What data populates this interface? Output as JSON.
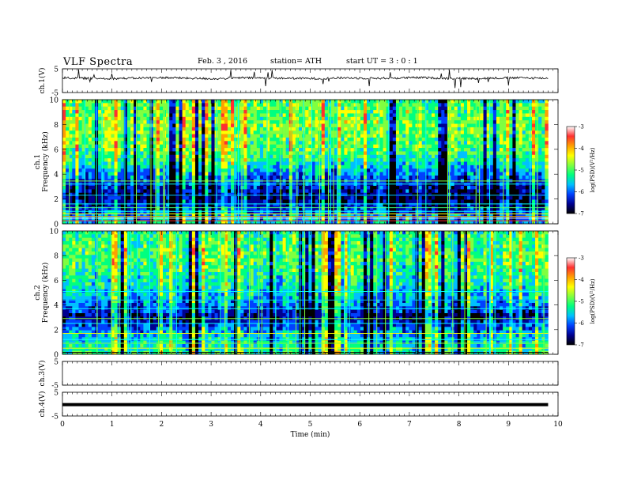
{
  "header": {
    "title": "VLF  Spectra",
    "date": "Feb. 3  , 2016",
    "station": "station= ATH",
    "start": "start  UT  =    3  : 0   : 1"
  },
  "colorbar": {
    "label": "log(PSD)(V²/Hz)",
    "ticks": [
      "-3",
      "-4",
      "-5",
      "-6",
      "-7"
    ],
    "colors": [
      "#ffffff",
      "#ff3030",
      "#ffa000",
      "#ffff00",
      "#80ff40",
      "#00ff80",
      "#00c0ff",
      "#0040ff",
      "#000090",
      "#000000"
    ]
  },
  "chart_data": [
    {
      "type": "line",
      "panel": "ch1-waveform",
      "ylabel": "ch.1(V)",
      "ylim": [
        -5,
        5
      ],
      "yticks": [
        "5",
        "-5"
      ],
      "series": [
        {
          "values": [
            1.2,
            1.0,
            0.9,
            1.1,
            1.3,
            1.0,
            0.8,
            1.2,
            1.1,
            1.0,
            0.9,
            1.2,
            1.0,
            1.1,
            1.3,
            1.0,
            0.9,
            1.1,
            1.2,
            1.0
          ]
        }
      ]
    },
    {
      "type": "heatmap",
      "panel": "ch1-spectrogram",
      "ylabel": "Frequency (kHz)",
      "channel_label": "ch.1",
      "xlim": [
        0,
        9.8
      ],
      "ylim": [
        0,
        10
      ],
      "yticks": [
        "0",
        "2",
        "4",
        "6",
        "8",
        "10"
      ],
      "zlim": [
        -7,
        -3
      ],
      "band_profile_khz": [
        0,
        1,
        2,
        3,
        4,
        5,
        6,
        7,
        8,
        9,
        10
      ],
      "band_profile_logpsd": [
        -5.5,
        -6.0,
        -6.6,
        -6.3,
        -5.8,
        -5.3,
        -5.0,
        -4.9,
        -4.8,
        -4.9,
        -5.0
      ]
    },
    {
      "type": "heatmap",
      "panel": "ch2-spectrogram",
      "ylabel": "Frequency (kHz)",
      "channel_label": "ch.2",
      "xlim": [
        0,
        9.8
      ],
      "ylim": [
        0,
        10
      ],
      "yticks": [
        "0",
        "2",
        "4",
        "6",
        "8",
        "10"
      ],
      "zlim": [
        -7,
        -3
      ],
      "band_profile_khz": [
        0,
        1,
        2,
        3,
        4,
        5,
        6,
        7,
        8,
        9,
        10
      ],
      "band_profile_logpsd": [
        -5.2,
        -5.4,
        -5.8,
        -6.5,
        -5.9,
        -5.5,
        -5.3,
        -5.1,
        -5.0,
        -5.1,
        -5.2
      ]
    },
    {
      "type": "line",
      "panel": "ch3-waveform",
      "ylabel": "ch.3(V)",
      "ylim": [
        -5,
        5
      ],
      "yticks": [
        "5",
        "-5"
      ],
      "series": []
    },
    {
      "type": "line",
      "panel": "ch4-waveform",
      "ylabel": "ch.4(V)",
      "ylim": [
        -5,
        5
      ],
      "yticks": [
        "5",
        "-5"
      ],
      "series": [
        {
          "values": [
            -0.2,
            -0.2,
            -0.2,
            -0.2,
            -0.2,
            -0.2,
            -0.2,
            -0.2,
            -0.2,
            -0.2
          ]
        }
      ]
    }
  ],
  "xaxis": {
    "label": "Time  (min)",
    "xlim": [
      0,
      10
    ],
    "ticks": [
      "0",
      "1",
      "2",
      "3",
      "4",
      "5",
      "6",
      "7",
      "8",
      "9",
      "10"
    ]
  }
}
